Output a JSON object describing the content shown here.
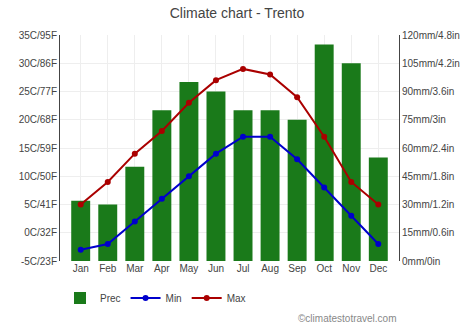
{
  "chart_data": {
    "type": "bar",
    "title": "Climate chart - Trento",
    "categories": [
      "Jan",
      "Feb",
      "Mar",
      "Apr",
      "May",
      "Jun",
      "Jul",
      "Aug",
      "Sep",
      "Oct",
      "Nov",
      "Dec"
    ],
    "series": [
      {
        "name": "Prec",
        "type": "bar",
        "axis": "y2",
        "color": "#1a7a1a",
        "values": [
          32,
          30,
          50,
          80,
          95,
          90,
          80,
          80,
          75,
          115,
          105,
          55
        ]
      },
      {
        "name": "Min",
        "type": "line",
        "marker": "circle",
        "color": "#0000cc",
        "values": [
          -3,
          -2,
          2,
          6,
          10,
          14,
          17,
          17,
          13,
          8,
          3,
          -2
        ]
      },
      {
        "name": "Max",
        "type": "line",
        "marker": "circle",
        "color": "#aa0000",
        "values": [
          5,
          9,
          14,
          18,
          23,
          27,
          29,
          28,
          24,
          17,
          9,
          5
        ]
      }
    ],
    "ylim": [
      -5,
      35
    ],
    "yticks": [
      {
        "value": -5,
        "label": "-5C/23F"
      },
      {
        "value": 0,
        "label": "0C/32F"
      },
      {
        "value": 5,
        "label": "5C/41F"
      },
      {
        "value": 10,
        "label": "10C/50F"
      },
      {
        "value": 15,
        "label": "15C/59F"
      },
      {
        "value": 20,
        "label": "20C/68F"
      },
      {
        "value": 25,
        "label": "25C/77F"
      },
      {
        "value": 30,
        "label": "30C/86F"
      },
      {
        "value": 35,
        "label": "35C/95F"
      }
    ],
    "y2lim": [
      0,
      120
    ],
    "y2ticks": [
      {
        "value": 0,
        "label": "0mm/0in"
      },
      {
        "value": 15,
        "label": "15mm/0.6in"
      },
      {
        "value": 30,
        "label": "30mm/1.2in"
      },
      {
        "value": 45,
        "label": "45mm/1.8in"
      },
      {
        "value": 60,
        "label": "60mm/2.4in"
      },
      {
        "value": 75,
        "label": "75mm/3in"
      },
      {
        "value": 90,
        "label": "90mm/3.6in"
      },
      {
        "value": 105,
        "label": "105mm/4.2in"
      },
      {
        "value": 120,
        "label": "120mm/4.8in"
      }
    ],
    "grid": true,
    "legend": "lower left",
    "annotations": [
      {
        "text": "©climatestotravel.com"
      }
    ]
  }
}
